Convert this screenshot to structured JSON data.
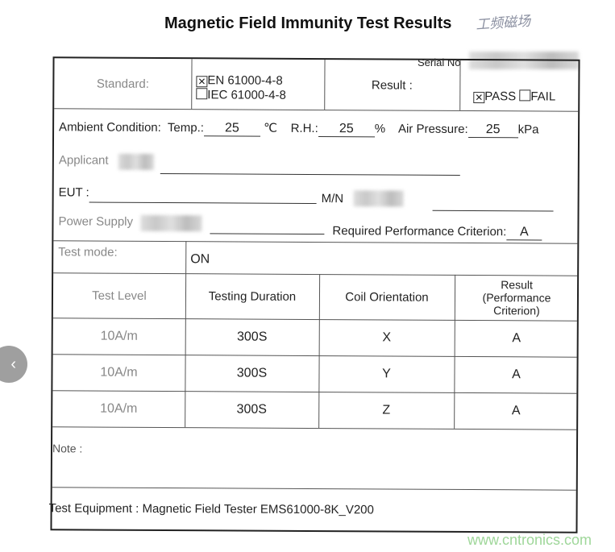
{
  "title": "Magnetic Field Immunity Test Results",
  "handwritten_note": "工频磁场",
  "serial_label": "Serial No",
  "standard": {
    "label": "Standard:",
    "options": [
      {
        "label": "EN 61000-4-8",
        "checked": true
      },
      {
        "label": "IEC 61000-4-8",
        "checked": false
      }
    ]
  },
  "result": {
    "label": "Result :",
    "options": [
      {
        "label": "PASS",
        "checked": true
      },
      {
        "label": "FAIL",
        "checked": false
      }
    ]
  },
  "ambient": {
    "label": "Ambient Condition:",
    "temp_label": "Temp.:",
    "temp": "25",
    "temp_unit": "℃",
    "rh_label": "R.H.:",
    "rh": "25",
    "rh_unit": "%",
    "pressure_label": "Air Pressure:",
    "pressure": "25",
    "pressure_unit": "kPa"
  },
  "applicant_label": "Applicant",
  "eut_label": "EUT :",
  "mn_label": "M/N",
  "power_label": "Power Supply",
  "criterion_label": "Required Performance Criterion:",
  "criterion": "A",
  "test_mode_label": "Test mode:",
  "test_mode": "ON",
  "table": {
    "headers": [
      "Test Level",
      "Testing Duration",
      "Coil Orientation",
      "Result (Performance Criterion)"
    ],
    "rows": [
      [
        "10A/m",
        "300S",
        "X",
        "A"
      ],
      [
        "10A/m",
        "300S",
        "Y",
        "A"
      ],
      [
        "10A/m",
        "300S",
        "Z",
        "A"
      ]
    ]
  },
  "note_label": "Note :",
  "equipment": "Test Equipment : Magnetic Field Tester EMS61000-8K_V200",
  "nav": {
    "icon": "chevron-left-icon",
    "glyph": "‹"
  },
  "watermark": "www.cntronics.com"
}
